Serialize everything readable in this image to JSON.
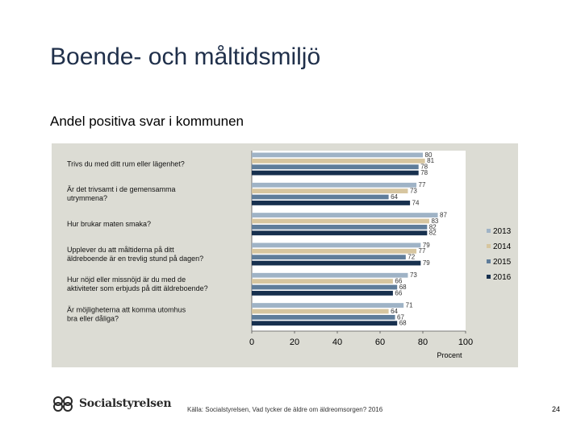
{
  "slide": {
    "title": "Boende- och måltidsmiljö",
    "subtitle": "Andel positiva svar i kommunen",
    "source": "Källa: Socialstyrelsen, Vad tycker de äldre om äldreomsorgen? 2016",
    "page_number": "24",
    "logo_text": "Socialstyrelsen"
  },
  "colors": {
    "series": [
      "#9fb3c6",
      "#d7c6a0",
      "#5f7d9a",
      "#17304e"
    ],
    "panel": "#dcdcd4"
  },
  "chart_data": {
    "type": "bar",
    "orientation": "horizontal",
    "title": "",
    "xlabel": "Procent",
    "xlim": [
      0,
      100
    ],
    "xticks": [
      0,
      20,
      40,
      60,
      80,
      100
    ],
    "legend_position": "right",
    "categories": [
      [
        "Trivs du med ditt rum eller lägenhet?"
      ],
      [
        "Är det trivsamt i de gemensamma",
        "utrymmena?"
      ],
      [
        "Hur brukar maten smaka?"
      ],
      [
        "Upplever du att måltiderna på ditt",
        "äldreboende är en trevlig stund på dagen?"
      ],
      [
        "Hur nöjd eller missnöjd är du med de",
        "aktiviteter som erbjuds på ditt äldreboende?"
      ],
      [
        "Är möjligheterna att komma utomhus",
        "bra eller dåliga?"
      ]
    ],
    "series": [
      {
        "name": "2013",
        "values": [
          80,
          77,
          87,
          79,
          73,
          71
        ]
      },
      {
        "name": "2014",
        "values": [
          81,
          73,
          83,
          77,
          66,
          64
        ]
      },
      {
        "name": "2015",
        "values": [
          78,
          64,
          82,
          72,
          68,
          67
        ]
      },
      {
        "name": "2016",
        "values": [
          78,
          74,
          82,
          79,
          66,
          68
        ]
      }
    ]
  }
}
